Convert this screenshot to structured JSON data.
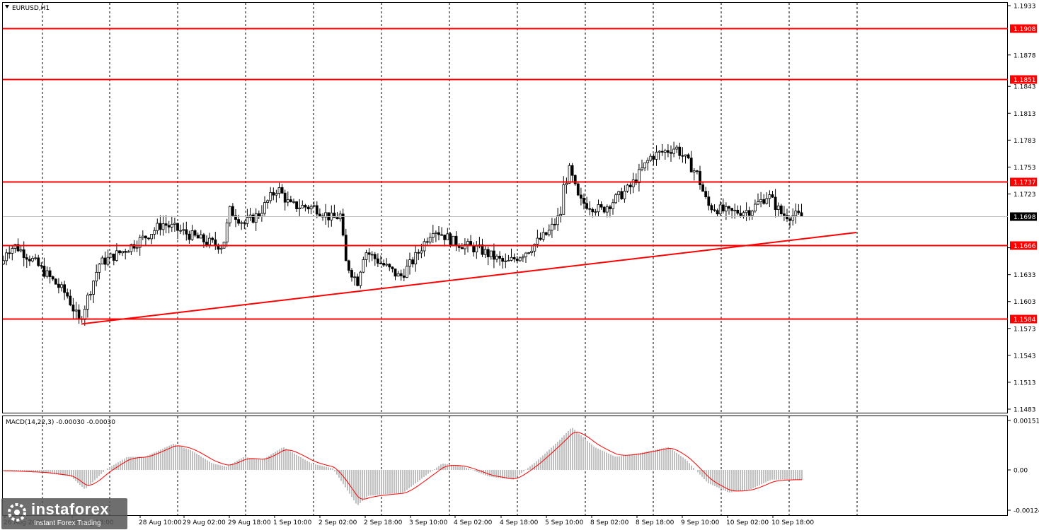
{
  "symbol_label": "EURUSD,H1",
  "macd_label": "MACD(14,22,3) -0.00030 -0.00030",
  "watermark": {
    "brand": "instaforex",
    "tagline": "Instant Forex Trading"
  },
  "colors": {
    "level_line": "#ff0000",
    "candle": "#000000",
    "macd_hist": "#c0c0c0",
    "macd_signal": "#ff0000",
    "grid": "#000000"
  },
  "price_axis_ticks": [
    "1.1933",
    "1.1878",
    "1.1843",
    "1.1813",
    "1.1783",
    "1.1753",
    "1.1723",
    "1.1693",
    "1.1663",
    "1.1633",
    "1.1603",
    "1.1573",
    "1.1543",
    "1.1513",
    "1.1483"
  ],
  "macd_axis_ticks": [
    "0.00151",
    "0.00",
    "-0.00124"
  ],
  "time_labels": [
    "26 Aug 2025",
    "27 Aug 18:00",
    "28 Aug 10:00",
    "29 Aug 02:00",
    "29 Aug 18:00",
    "1 Sep 10:00",
    "2 Sep 02:00",
    "2 Sep 18:00",
    "3 Sep 10:00",
    "4 Sep 02:00",
    "4 Sep 18:00",
    "5 Sep 10:00",
    "8 Sep 02:00",
    "8 Sep 18:00",
    "9 Sep 10:00",
    "10 Sep 02:00",
    "10 Sep 18:00"
  ],
  "chart_data": {
    "type": "candlestick",
    "instrument": "EURUSD",
    "timeframe": "H1",
    "y_range": [
      1.1483,
      1.1933
    ],
    "current_price": 1.1698,
    "horizontal_levels": [
      1.1908,
      1.1851,
      1.1737,
      1.1666,
      1.1584
    ],
    "level_labels": [
      "1.1908",
      "1.1851",
      "1.1737",
      "1.1666",
      "1.1584"
    ],
    "current_price_label": "1.1698",
    "trendline": {
      "start": [
        "27 Aug",
        1.1578
      ],
      "end": [
        "11 Sep",
        1.168
      ]
    },
    "price_path_keypoints": [
      [
        0,
        1.163
      ],
      [
        8,
        1.166
      ],
      [
        22,
        1.1665
      ],
      [
        45,
        1.165
      ],
      [
        70,
        1.163
      ],
      [
        95,
        1.161
      ],
      [
        112,
        1.158
      ],
      [
        125,
        1.161
      ],
      [
        140,
        1.1645
      ],
      [
        175,
        1.166
      ],
      [
        205,
        1.1675
      ],
      [
        230,
        1.169
      ],
      [
        260,
        1.168
      ],
      [
        290,
        1.167
      ],
      [
        315,
        1.1665
      ],
      [
        325,
        1.1705
      ],
      [
        345,
        1.169
      ],
      [
        365,
        1.17
      ],
      [
        392,
        1.173
      ],
      [
        410,
        1.171
      ],
      [
        445,
        1.1708
      ],
      [
        470,
        1.1695
      ],
      [
        483,
        1.17
      ],
      [
        486,
        1.165
      ],
      [
        505,
        1.1625
      ],
      [
        515,
        1.166
      ],
      [
        540,
        1.1645
      ],
      [
        565,
        1.163
      ],
      [
        585,
        1.165
      ],
      [
        612,
        1.1685
      ],
      [
        640,
        1.167
      ],
      [
        680,
        1.166
      ],
      [
        715,
        1.1645
      ],
      [
        745,
        1.166
      ],
      [
        775,
        1.168
      ],
      [
        792,
        1.17
      ],
      [
        796,
        1.173
      ],
      [
        805,
        1.175
      ],
      [
        818,
        1.1715
      ],
      [
        850,
        1.1705
      ],
      [
        890,
        1.173
      ],
      [
        920,
        1.1765
      ],
      [
        955,
        1.1775
      ],
      [
        985,
        1.1745
      ],
      [
        1000,
        1.171
      ],
      [
        1030,
        1.1702
      ],
      [
        1060,
        1.1705
      ],
      [
        1085,
        1.1722
      ],
      [
        1105,
        1.17
      ],
      [
        1135,
        1.1698
      ]
    ],
    "macd": {
      "params": "14,22,3",
      "value": -0.0003,
      "signal": -0.0003,
      "y_range": [
        -0.00124,
        0.00151
      ],
      "histogram_keypoints": [
        [
          0,
          -2e-05
        ],
        [
          60,
          -8e-05
        ],
        [
          100,
          -0.0002
        ],
        [
          120,
          -0.0006
        ],
        [
          130,
          -0.0004
        ],
        [
          150,
          2e-05
        ],
        [
          180,
          0.0004
        ],
        [
          205,
          0.0004
        ],
        [
          245,
          0.0008
        ],
        [
          270,
          0.0006
        ],
        [
          300,
          0.0002
        ],
        [
          320,
          0.0001
        ],
        [
          345,
          0.0004
        ],
        [
          370,
          0.0003
        ],
        [
          400,
          0.0007
        ],
        [
          440,
          0.0002
        ],
        [
          470,
          5e-05
        ],
        [
          490,
          -0.0006
        ],
        [
          505,
          -0.0011
        ],
        [
          520,
          -0.0008
        ],
        [
          570,
          -0.0007
        ],
        [
          600,
          -0.0002
        ],
        [
          625,
          0.0002
        ],
        [
          655,
          0.0001
        ],
        [
          690,
          -0.0002
        ],
        [
          725,
          -0.0003
        ],
        [
          760,
          0.0003
        ],
        [
          790,
          0.0009
        ],
        [
          808,
          0.0013
        ],
        [
          840,
          0.0007
        ],
        [
          870,
          0.0004
        ],
        [
          900,
          0.0005
        ],
        [
          945,
          0.0007
        ],
        [
          970,
          0.0003
        ],
        [
          1000,
          -0.0004
        ],
        [
          1030,
          -0.0007
        ],
        [
          1060,
          -0.0006
        ],
        [
          1090,
          -0.0003
        ],
        [
          1110,
          -0.0003
        ],
        [
          1135,
          -0.0003
        ]
      ]
    }
  }
}
